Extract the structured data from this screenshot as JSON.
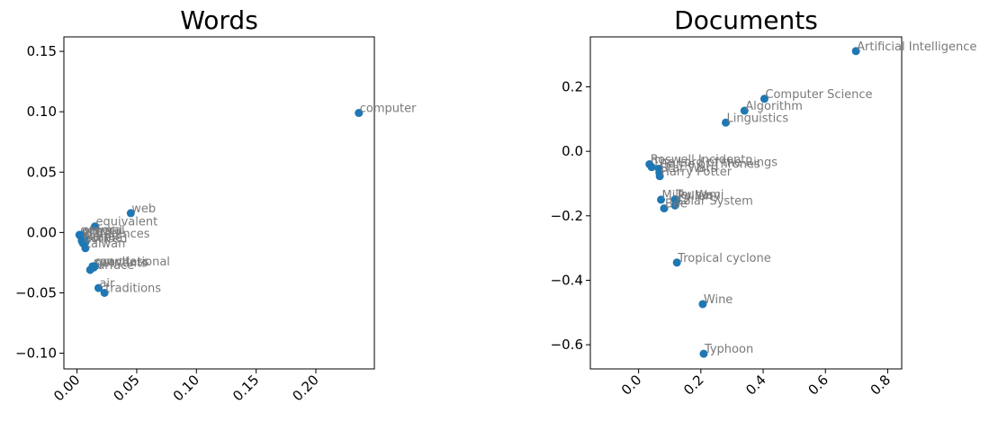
{
  "chart_data": [
    {
      "type": "scatter",
      "title": "Words",
      "xlabel": "",
      "ylabel": "",
      "xlim": [
        -0.011,
        0.249
      ],
      "ylim": [
        -0.113,
        0.162
      ],
      "xticks": [
        0.0,
        0.05,
        0.1,
        0.15,
        0.2
      ],
      "xtick_labels": [
        "0.00",
        "0.05",
        "0.10",
        "0.15",
        "0.20"
      ],
      "yticks": [
        -0.1,
        -0.05,
        0.0,
        0.05,
        0.1,
        0.15
      ],
      "ytick_labels": [
        "−0.10",
        "−0.05",
        "0.00",
        "0.05",
        "0.10",
        "0.15"
      ],
      "grid": false,
      "point_color": "#1f77b4",
      "label_color": "#7a7a7a",
      "points": [
        {
          "label": "computer",
          "x": 0.236,
          "y": 0.099
        },
        {
          "label": "web",
          "x": 0.045,
          "y": 0.016
        },
        {
          "label": "equivalent",
          "x": 0.015,
          "y": 0.005
        },
        {
          "label": "general",
          "x": 0.002,
          "y": -0.002
        },
        {
          "label": "plural",
          "x": 0.003,
          "y": -0.003
        },
        {
          "label": "animal",
          "x": 0.004,
          "y": -0.002
        },
        {
          "label": "differences",
          "x": 0.006,
          "y": -0.005
        },
        {
          "label": "plane",
          "x": 0.004,
          "y": -0.007
        },
        {
          "label": "stable",
          "x": 0.007,
          "y": -0.008
        },
        {
          "label": "noticed",
          "x": 0.005,
          "y": -0.009
        },
        {
          "label": "taiwan",
          "x": 0.007,
          "y": -0.013
        },
        {
          "label": "surface",
          "x": 0.011,
          "y": -0.031
        },
        {
          "label": "countless",
          "x": 0.013,
          "y": -0.028
        },
        {
          "label": "nutrients",
          "x": 0.014,
          "y": -0.029
        },
        {
          "label": "gravitational",
          "x": 0.015,
          "y": -0.028
        },
        {
          "label": "air",
          "x": 0.018,
          "y": -0.046
        },
        {
          "label": "traditions",
          "x": 0.023,
          "y": -0.05
        }
      ]
    },
    {
      "type": "scatter",
      "title": "Documents",
      "xlabel": "",
      "ylabel": "",
      "xlim": [
        -0.155,
        0.845
      ],
      "ylim": [
        -0.675,
        0.355
      ],
      "xticks": [
        0.0,
        0.2,
        0.4,
        0.6,
        0.8
      ],
      "xtick_labels": [
        "0.0",
        "0.2",
        "0.4",
        "0.6",
        "0.8"
      ],
      "yticks": [
        -0.6,
        -0.4,
        -0.2,
        0.0,
        0.2
      ],
      "ytick_labels": [
        "−0.6",
        "−0.4",
        "−0.2",
        "0.0",
        "0.2"
      ],
      "grid": false,
      "point_color": "#1f77b4",
      "label_color": "#7a7a7a",
      "points": [
        {
          "label": "Artificial Intelligence",
          "x": 0.698,
          "y": 0.311
        },
        {
          "label": "Computer Science",
          "x": 0.404,
          "y": 0.163
        },
        {
          "label": "Algorithm",
          "x": 0.34,
          "y": 0.126
        },
        {
          "label": "Linguistics",
          "x": 0.28,
          "y": 0.089
        },
        {
          "label": "Roswell Incident",
          "x": 0.035,
          "y": -0.04
        },
        {
          "label": "The Lord of the Rings",
          "x": 0.042,
          "y": -0.049
        },
        {
          "label": "Game of Thrones",
          "x": 0.065,
          "y": -0.054
        },
        {
          "label": "Star Wars",
          "x": 0.067,
          "y": -0.067
        },
        {
          "label": "Harry Potter",
          "x": 0.068,
          "y": -0.077
        },
        {
          "label": "Tsunami",
          "x": 0.117,
          "y": -0.149
        },
        {
          "label": "Milky Way",
          "x": 0.072,
          "y": -0.15
        },
        {
          "label": "Pollen",
          "x": 0.122,
          "y": -0.153
        },
        {
          "label": "Solar System",
          "x": 0.117,
          "y": -0.168
        },
        {
          "label": "Bee",
          "x": 0.082,
          "y": -0.177
        },
        {
          "label": "Tropical cyclone",
          "x": 0.123,
          "y": -0.345
        },
        {
          "label": "Wine",
          "x": 0.206,
          "y": -0.474
        },
        {
          "label": "Typhoon",
          "x": 0.209,
          "y": -0.628
        }
      ]
    }
  ]
}
